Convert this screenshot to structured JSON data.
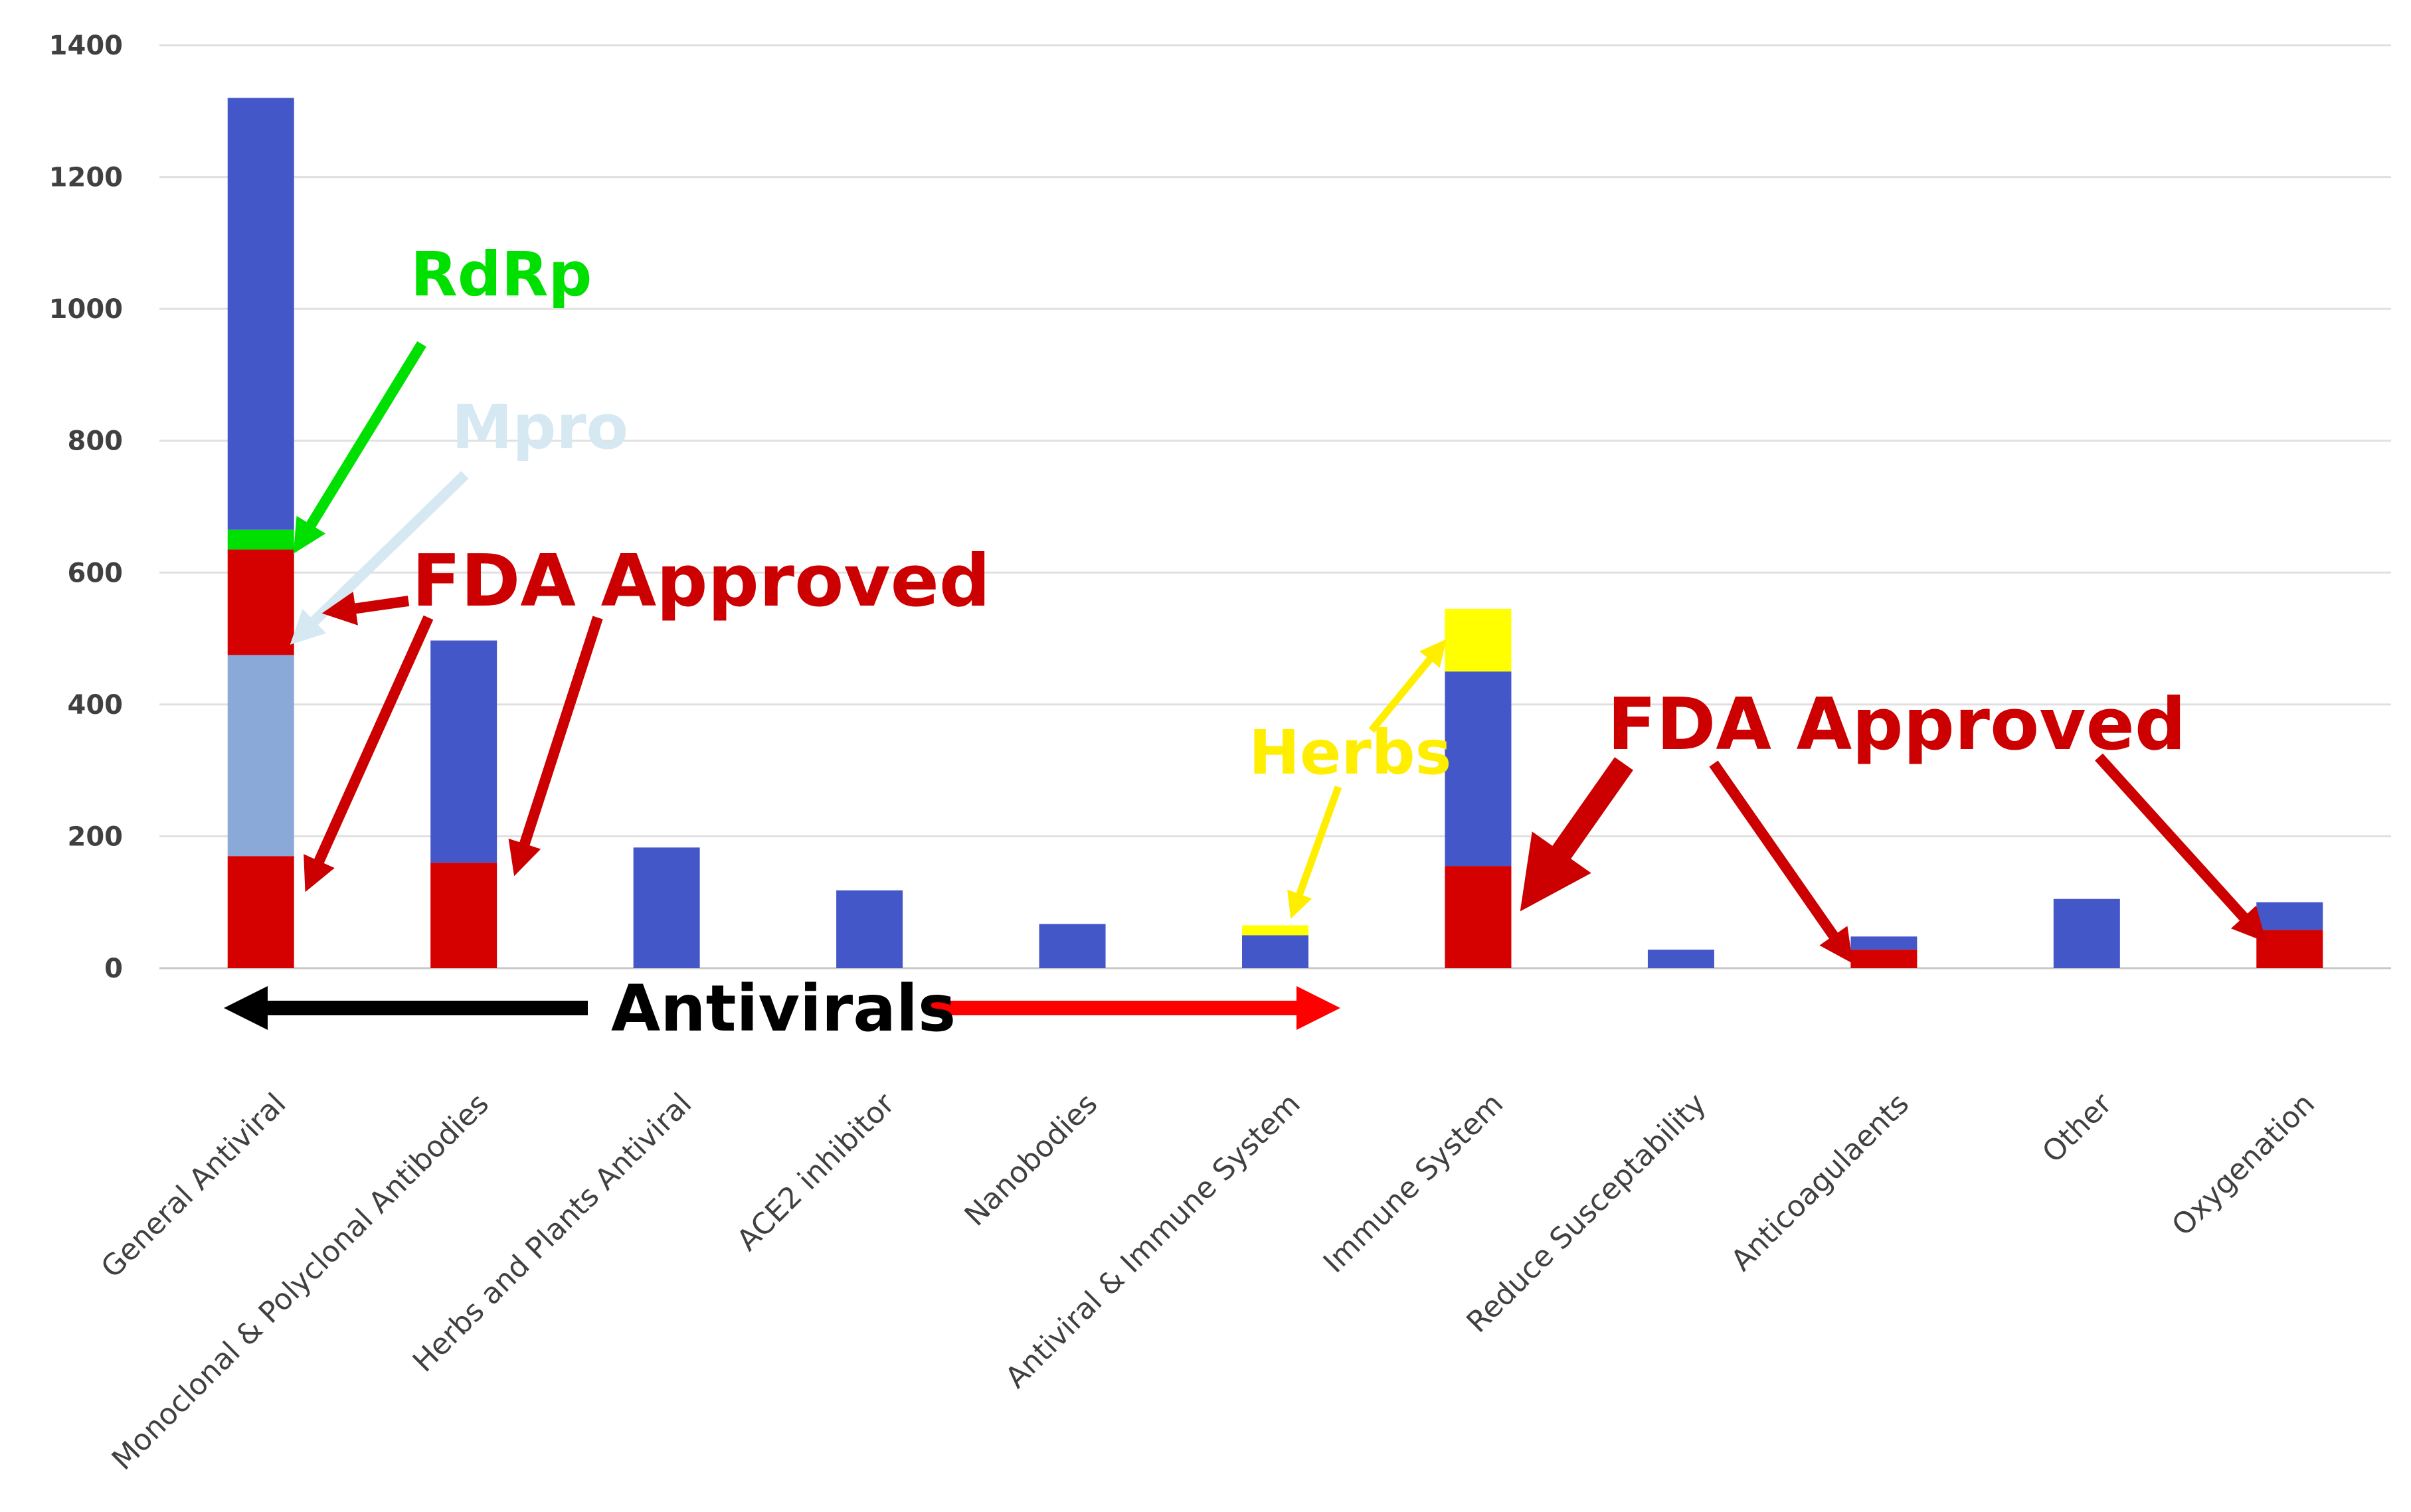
{
  "chart_data": {
    "type": "bar",
    "stacked": true,
    "title": "",
    "xlabel": "",
    "ylabel": "",
    "ylim": [
      0,
      1400
    ],
    "yticks": [
      0,
      200,
      400,
      600,
      800,
      1000,
      1200,
      1400
    ],
    "grid": true,
    "categories": [
      "General Antiviral",
      "Monoclonal & Polyclonal Antibodies",
      "Herbs and Plants Antiviral",
      "ACE2 inhibitor",
      "Nanobodies",
      "Antiviral & Immune System",
      "Immune System",
      "Reduce Susceptability",
      "Anticoagulaents",
      "Other",
      "Oxygenation"
    ],
    "series": [
      {
        "name": "FDA Approved (base)",
        "color": "#d50000",
        "values": [
          170,
          160,
          0,
          0,
          0,
          0,
          155,
          0,
          28,
          0,
          58
        ]
      },
      {
        "name": "Mpro",
        "color": "#8aa8d8",
        "values": [
          305,
          0,
          0,
          0,
          0,
          0,
          0,
          0,
          0,
          0,
          0
        ]
      },
      {
        "name": "FDA Approved (Mpro/RdRp)",
        "color": "#d50000",
        "values": [
          160,
          0,
          0,
          0,
          0,
          0,
          0,
          0,
          0,
          0,
          0
        ]
      },
      {
        "name": "RdRp",
        "color": "#00e000",
        "values": [
          30,
          0,
          0,
          0,
          0,
          0,
          0,
          0,
          0,
          0,
          0
        ]
      },
      {
        "name": "Other",
        "color": "#4457c8",
        "values": [
          655,
          337,
          183,
          118,
          67,
          50,
          295,
          28,
          20,
          105,
          42
        ]
      },
      {
        "name": "Herbs",
        "color": "#ffff00",
        "values": [
          0,
          0,
          0,
          0,
          0,
          15,
          95,
          0,
          0,
          0,
          0
        ]
      }
    ]
  },
  "annotations": {
    "rdrp": {
      "text": "RdRp",
      "color": "#00e000"
    },
    "mpro": {
      "text": "Mpro",
      "color": "#d6e8f2"
    },
    "fda_left": {
      "text": "FDA Approved",
      "color": "#cc0000"
    },
    "herbs": {
      "text": "Herbs",
      "color": "#ffee00"
    },
    "fda_right": {
      "text": "FDA Approved",
      "color": "#cc0000"
    },
    "antivirals": {
      "text": "Antivirals",
      "color": "#000000"
    },
    "arrow_black": "#000000",
    "arrow_red": "#ff0000",
    "arrow_dark_red": "#cc0000"
  }
}
